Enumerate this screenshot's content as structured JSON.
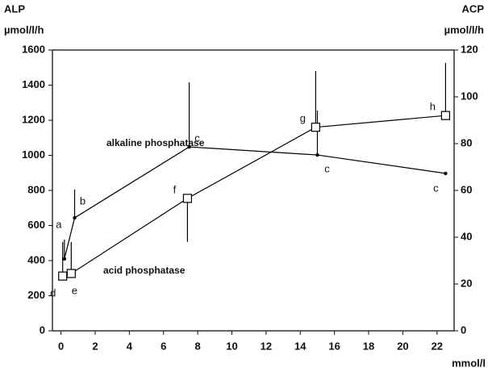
{
  "chart_data": {
    "type": "line",
    "y_label": [
      "ALP",
      "µmol/l/h"
    ],
    "y2_label": [
      "ACP",
      "µmol/l/h"
    ],
    "x_label": "mmol/l",
    "xlim": [
      -0.5,
      23
    ],
    "xticks": [
      0,
      2,
      4,
      6,
      8,
      10,
      12,
      14,
      16,
      18,
      20,
      22
    ],
    "ylim": [
      0,
      1600
    ],
    "yticks": [
      0,
      200,
      400,
      600,
      800,
      1000,
      1200,
      1400,
      1600
    ],
    "y2lim": [
      0,
      120
    ],
    "y2ticks": [
      0,
      20,
      40,
      60,
      80,
      100,
      120
    ],
    "series": [
      {
        "name": "alkaline phosphatase",
        "color": "#000000",
        "marker": "dot",
        "x": [
          0.2,
          0.8,
          7.5,
          15,
          22.5
        ],
        "values": [
          410,
          644,
          1048,
          1002,
          897
        ],
        "error_ends": [
          520,
          805,
          1416,
          1255,
          null
        ],
        "point_labels": [
          "a",
          "b",
          "c",
          "c",
          "c"
        ]
      },
      {
        "name": "acid phosphatase",
        "color": "#000000",
        "marker": "square",
        "axis": "y2",
        "x": [
          0.1,
          0.6,
          7.4,
          14.9,
          22.5
        ],
        "values": [
          23.4,
          24.5,
          56.6,
          87,
          92
        ],
        "error_ends": [
          38,
          38,
          38,
          111,
          114.5
        ],
        "point_labels": [
          "d",
          "e",
          "f",
          "g",
          "h"
        ]
      }
    ]
  }
}
